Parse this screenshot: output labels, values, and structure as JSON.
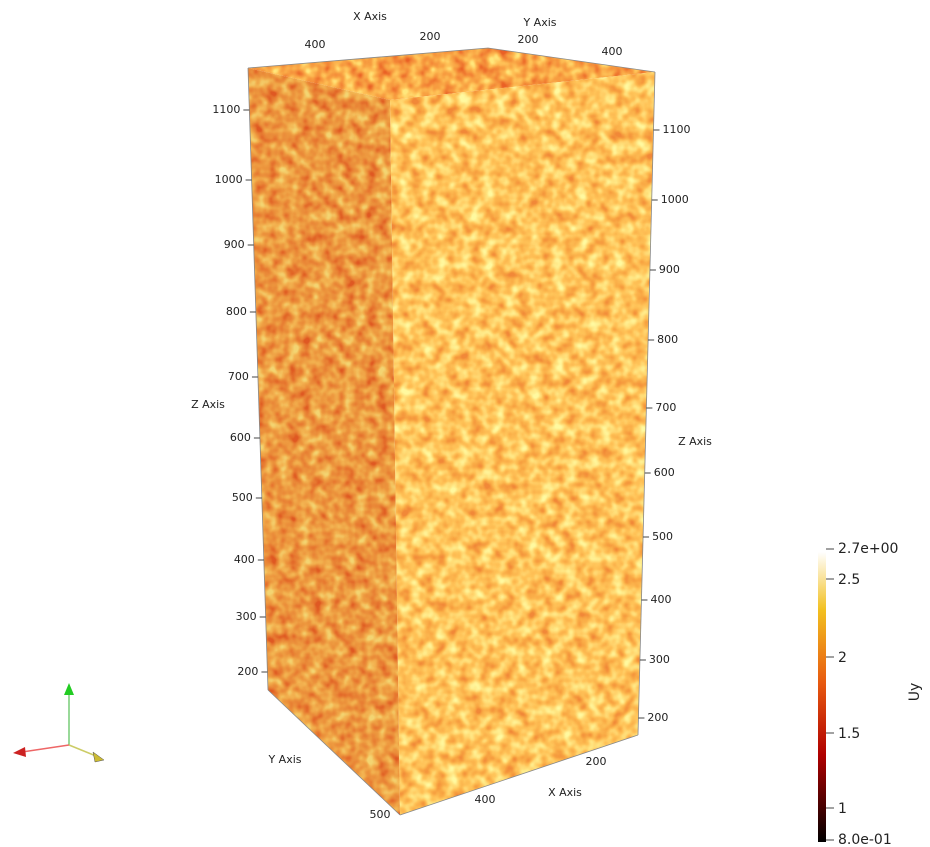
{
  "axes": {
    "top_x": {
      "title": "X Axis",
      "ticks": [
        "400",
        "200"
      ]
    },
    "top_y": {
      "title": "Y Axis",
      "ticks": [
        "200",
        "400"
      ]
    },
    "left_z": {
      "title": "Z Axis",
      "ticks": [
        "1100",
        "1000",
        "900",
        "800",
        "700",
        "600",
        "500",
        "400",
        "300",
        "200"
      ]
    },
    "right_z": {
      "title": "Z Axis",
      "ticks": [
        "1100",
        "1000",
        "900",
        "800",
        "700",
        "600",
        "500",
        "400",
        "300",
        "200"
      ]
    },
    "bottom_y": {
      "title": "Y Axis",
      "ticks": [
        "500"
      ]
    },
    "bottom_x": {
      "title": "X Axis",
      "ticks": [
        "400",
        "200"
      ]
    }
  },
  "colorbar": {
    "title": "Uy",
    "labels": [
      "2.7e+00",
      "2.5",
      "2",
      "1.5",
      "1",
      "8.0e-01"
    ]
  }
}
